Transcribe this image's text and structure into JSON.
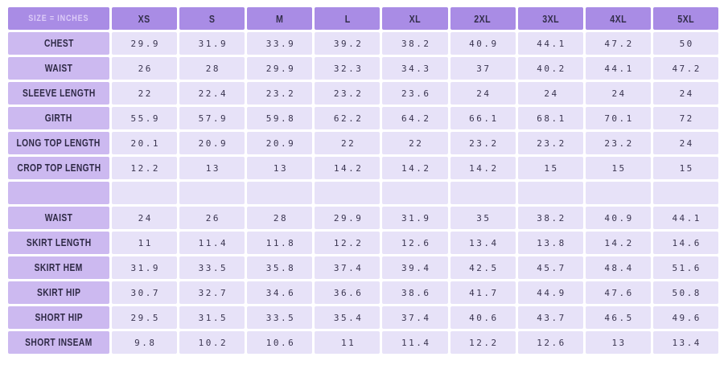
{
  "colors": {
    "header_bg": "#a98ce5",
    "label_bg": "#ccb9f0",
    "cell_bg": "#e7e2f8",
    "header_text": "#332e4a",
    "title_text": "#ddccf8",
    "value_text": "#3a3550",
    "grid_gap": "#ffffff"
  },
  "chart_data": {
    "type": "table",
    "title": "SIZE = INCHES",
    "legend_position": "none",
    "grid": "white gaps between lavender cells",
    "sizes": [
      "XS",
      "S",
      "M",
      "L",
      "XL",
      "2XL",
      "3XL",
      "4XL",
      "5XL"
    ],
    "rows": [
      {
        "label": "CHEST",
        "values": [
          "29.9",
          "31.9",
          "33.9",
          "39.2",
          "38.2",
          "40.9",
          "44.1",
          "47.2",
          "50"
        ]
      },
      {
        "label": "WAIST",
        "values": [
          "26",
          "28",
          "29.9",
          "32.3",
          "34.3",
          "37",
          "40.2",
          "44.1",
          "47.2"
        ]
      },
      {
        "label": "SLEEVE LENGTH",
        "values": [
          "22",
          "22.4",
          "23.2",
          "23.2",
          "23.6",
          "24",
          "24",
          "24",
          "24"
        ]
      },
      {
        "label": "GIRTH",
        "values": [
          "55.9",
          "57.9",
          "59.8",
          "62.2",
          "64.2",
          "66.1",
          "68.1",
          "70.1",
          "72"
        ]
      },
      {
        "label": "LONG TOP LENGTH",
        "values": [
          "20.1",
          "20.9",
          "20.9",
          "22",
          "22",
          "23.2",
          "23.2",
          "23.2",
          "24"
        ]
      },
      {
        "label": "CROP TOP LENGTH",
        "values": [
          "12.2",
          "13",
          "13",
          "14.2",
          "14.2",
          "14.2",
          "15",
          "15",
          "15"
        ]
      },
      {
        "label": "",
        "values": [
          "",
          "",
          "",
          "",
          "",
          "",
          "",
          "",
          ""
        ]
      },
      {
        "label": "WAIST",
        "values": [
          "24",
          "26",
          "28",
          "29.9",
          "31.9",
          "35",
          "38.2",
          "40.9",
          "44.1"
        ]
      },
      {
        "label": "SKIRT LENGTH",
        "values": [
          "11",
          "11.4",
          "11.8",
          "12.2",
          "12.6",
          "13.4",
          "13.8",
          "14.2",
          "14.6"
        ]
      },
      {
        "label": "SKIRT HEM",
        "values": [
          "31.9",
          "33.5",
          "35.8",
          "37.4",
          "39.4",
          "42.5",
          "45.7",
          "48.4",
          "51.6"
        ]
      },
      {
        "label": "SKIRT HIP",
        "values": [
          "30.7",
          "32.7",
          "34.6",
          "36.6",
          "38.6",
          "41.7",
          "44.9",
          "47.6",
          "50.8"
        ]
      },
      {
        "label": "SHORT HIP",
        "values": [
          "29.5",
          "31.5",
          "33.5",
          "35.4",
          "37.4",
          "40.6",
          "43.7",
          "46.5",
          "49.6"
        ]
      },
      {
        "label": "SHORT INSEAM",
        "values": [
          "9.8",
          "10.2",
          "10.6",
          "11",
          "11.4",
          "12.2",
          "12.6",
          "13",
          "13.4"
        ]
      }
    ]
  }
}
